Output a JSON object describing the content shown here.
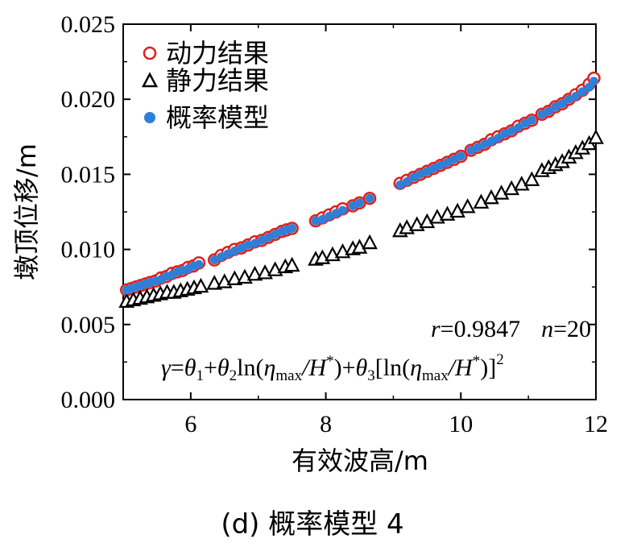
{
  "chart_data": {
    "type": "scatter",
    "panel_caption": "(d)  概率模型 4",
    "xlabel": "有效波高/m",
    "ylabel": "墩顶位移/m",
    "xlim": [
      5,
      12
    ],
    "ylim": [
      0,
      0.025
    ],
    "xticks": [
      6,
      8,
      10,
      12
    ],
    "xtick_labels": [
      "6",
      "8",
      "10",
      "12"
    ],
    "yticks": [
      0,
      0.005,
      0.01,
      0.015,
      0.02,
      0.025
    ],
    "ytick_labels": [
      "0.000",
      "0.005",
      "0.010",
      "0.015",
      "0.020",
      "0.025"
    ],
    "legend_position": "top-left",
    "legend": [
      {
        "label": "动力结果",
        "marker": "open-circle",
        "color": "#e0201b"
      },
      {
        "label": "静力结果",
        "marker": "open-triangle",
        "color": "#000000"
      },
      {
        "label": "概率模型",
        "marker": "filled-circle",
        "color": "#2f7fd8"
      }
    ],
    "annotation": {
      "stats": {
        "r_label": "r",
        "r_value": "=0.9847",
        "n_label": "n",
        "n_value": "=20"
      },
      "formula": {
        "gamma": "γ",
        "eq": "=",
        "theta": "θ",
        "sub1": "1",
        "plus": "+",
        "sub2": "2",
        "ln": "ln(",
        "eta": "η",
        "max": "max",
        "slash_h": "/H",
        "star": "*",
        "close": ")",
        "sub3": "3",
        "lbracket": "[ln(",
        "rbracket": ")]",
        "pow": "2"
      }
    },
    "series": [
      {
        "name": "动力结果",
        "x": [
          5.05,
          5.12,
          5.19,
          5.26,
          5.33,
          5.4,
          5.48,
          5.56,
          5.64,
          5.72,
          5.8,
          5.88,
          5.96,
          6.04,
          6.12,
          6.35,
          6.45,
          6.55,
          6.65,
          6.75,
          6.85,
          6.95,
          7.05,
          7.15,
          7.25,
          7.35,
          7.42,
          7.5,
          7.85,
          7.95,
          8.05,
          8.15,
          8.25,
          8.4,
          8.5,
          8.65,
          9.1,
          9.2,
          9.3,
          9.4,
          9.5,
          9.6,
          9.7,
          9.8,
          9.9,
          10.0,
          10.15,
          10.25,
          10.35,
          10.45,
          10.55,
          10.65,
          10.75,
          10.85,
          10.95,
          11.05,
          11.2,
          11.3,
          11.4,
          11.5,
          11.6,
          11.7,
          11.8,
          11.9,
          11.97
        ],
        "y": [
          0.0073,
          0.0074,
          0.0075,
          0.0076,
          0.0077,
          0.0078,
          0.0079,
          0.0081,
          0.0082,
          0.0084,
          0.0085,
          0.0086,
          0.0088,
          0.0089,
          0.0091,
          0.0093,
          0.0096,
          0.0098,
          0.01,
          0.0101,
          0.0103,
          0.0105,
          0.0106,
          0.0108,
          0.011,
          0.0112,
          0.0113,
          0.0114,
          0.0119,
          0.0121,
          0.0123,
          0.0125,
          0.0127,
          0.0129,
          0.0131,
          0.0134,
          0.0144,
          0.0146,
          0.0148,
          0.015,
          0.0152,
          0.0154,
          0.0156,
          0.0158,
          0.016,
          0.0162,
          0.0166,
          0.0168,
          0.017,
          0.0173,
          0.0175,
          0.0177,
          0.0179,
          0.0182,
          0.0184,
          0.0186,
          0.019,
          0.0192,
          0.0195,
          0.0197,
          0.02,
          0.0203,
          0.0206,
          0.021,
          0.0214
        ]
      },
      {
        "name": "静力结果",
        "x": [
          5.05,
          5.15,
          5.25,
          5.35,
          5.45,
          5.55,
          5.65,
          5.75,
          5.85,
          5.95,
          6.05,
          6.15,
          6.35,
          6.5,
          6.65,
          6.8,
          6.95,
          7.1,
          7.25,
          7.4,
          7.5,
          7.85,
          7.95,
          8.1,
          8.25,
          8.4,
          8.5,
          8.65,
          9.1,
          9.2,
          9.35,
          9.5,
          9.65,
          9.8,
          9.95,
          10.1,
          10.3,
          10.45,
          10.6,
          10.75,
          10.9,
          11.05,
          11.2,
          11.3,
          11.4,
          11.5,
          11.6,
          11.7,
          11.8,
          11.9,
          12.0
        ],
        "y": [
          0.0065,
          0.0066,
          0.0067,
          0.0068,
          0.0069,
          0.007,
          0.0071,
          0.0071,
          0.0072,
          0.0073,
          0.0074,
          0.0075,
          0.0077,
          0.0078,
          0.008,
          0.0081,
          0.0083,
          0.0084,
          0.0086,
          0.0088,
          0.0089,
          0.0093,
          0.0094,
          0.0096,
          0.0098,
          0.01,
          0.0101,
          0.0104,
          0.0112,
          0.0114,
          0.0116,
          0.0118,
          0.0121,
          0.0123,
          0.0125,
          0.0128,
          0.0131,
          0.0134,
          0.0137,
          0.014,
          0.0143,
          0.0146,
          0.0152,
          0.0154,
          0.0156,
          0.0158,
          0.0161,
          0.0164,
          0.0167,
          0.017,
          0.0174
        ]
      },
      {
        "name": "概率模型",
        "x": [
          5.05,
          5.12,
          5.19,
          5.26,
          5.33,
          5.4,
          5.48,
          5.56,
          5.64,
          5.72,
          5.8,
          5.88,
          5.96,
          6.04,
          6.12,
          6.35,
          6.45,
          6.55,
          6.65,
          6.75,
          6.85,
          6.95,
          7.05,
          7.15,
          7.25,
          7.35,
          7.42,
          7.5,
          7.85,
          7.95,
          8.05,
          8.15,
          8.25,
          8.4,
          8.5,
          8.65,
          9.1,
          9.2,
          9.3,
          9.4,
          9.5,
          9.6,
          9.7,
          9.8,
          9.9,
          10.0,
          10.15,
          10.25,
          10.35,
          10.45,
          10.55,
          10.65,
          10.75,
          10.85,
          10.95,
          11.05,
          11.2,
          11.3,
          11.4,
          11.5,
          11.6,
          11.7,
          11.8,
          11.9,
          11.97
        ],
        "y": [
          0.0073,
          0.0074,
          0.0075,
          0.0076,
          0.0077,
          0.0078,
          0.0079,
          0.008,
          0.0082,
          0.0083,
          0.0085,
          0.0086,
          0.0087,
          0.0089,
          0.009,
          0.0093,
          0.0095,
          0.0097,
          0.0099,
          0.0101,
          0.0103,
          0.0104,
          0.0106,
          0.0108,
          0.011,
          0.0112,
          0.0113,
          0.0114,
          0.0119,
          0.012,
          0.0122,
          0.0124,
          0.0126,
          0.0129,
          0.0131,
          0.0134,
          0.0143,
          0.0145,
          0.0148,
          0.015,
          0.0152,
          0.0154,
          0.0156,
          0.0158,
          0.016,
          0.0162,
          0.0166,
          0.0168,
          0.017,
          0.0172,
          0.0174,
          0.0177,
          0.0179,
          0.0181,
          0.0184,
          0.0186,
          0.019,
          0.0192,
          0.0195,
          0.0197,
          0.02,
          0.0202,
          0.0205,
          0.0208,
          0.0212
        ]
      }
    ]
  }
}
